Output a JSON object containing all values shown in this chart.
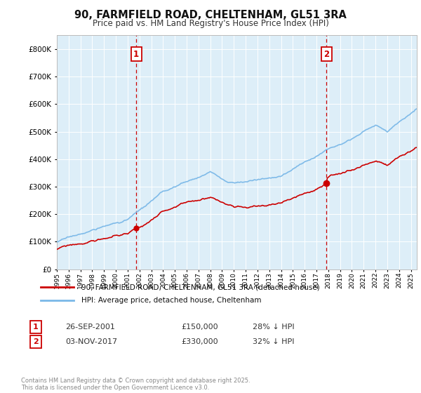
{
  "title": "90, FARMFIELD ROAD, CHELTENHAM, GL51 3RA",
  "subtitle": "Price paid vs. HM Land Registry's House Price Index (HPI)",
  "hpi_color": "#7ab8e8",
  "price_color": "#cc0000",
  "vline_color": "#cc0000",
  "bg_color": "#ddeef8",
  "grid_color": "#ffffff",
  "ylim": [
    0,
    850000
  ],
  "yticks": [
    0,
    100000,
    200000,
    300000,
    400000,
    500000,
    600000,
    700000,
    800000
  ],
  "sale1_year": 2001.73,
  "sale1_price": 150000,
  "sale2_year": 2017.84,
  "sale2_price": 330000,
  "legend_label1": "90, FARMFIELD ROAD, CHELTENHAM, GL51 3RA (detached house)",
  "legend_label2": "HPI: Average price, detached house, Cheltenham",
  "table_row1": [
    "1",
    "26-SEP-2001",
    "£150,000",
    "28% ↓ HPI"
  ],
  "table_row2": [
    "2",
    "03-NOV-2017",
    "£330,000",
    "32% ↓ HPI"
  ],
  "footnote": "Contains HM Land Registry data © Crown copyright and database right 2025.\nThis data is licensed under the Open Government Licence v3.0.",
  "hpi_seed": 17,
  "price_seed": 99
}
